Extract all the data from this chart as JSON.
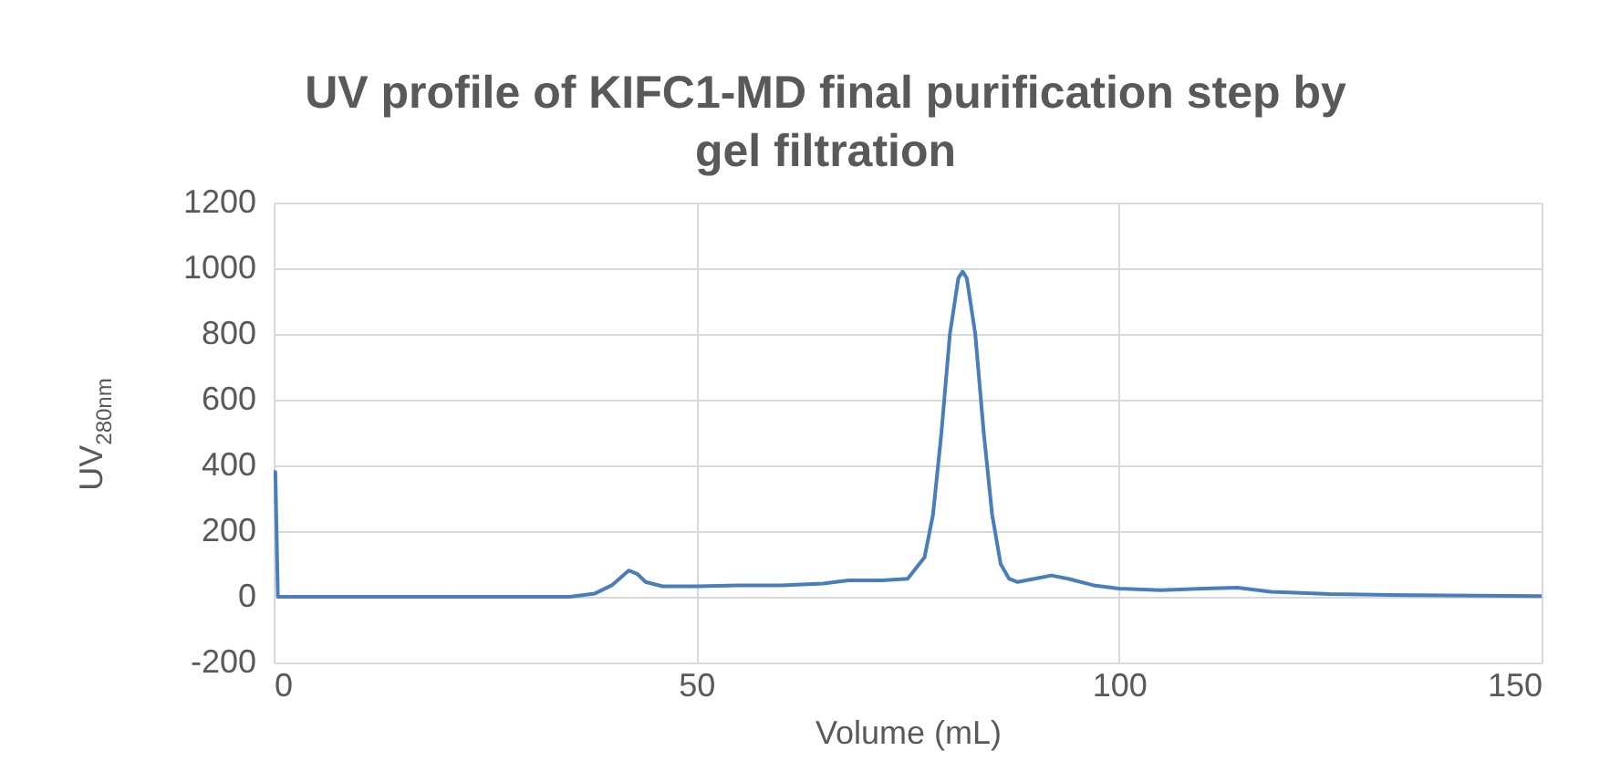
{
  "chart_data": {
    "type": "line",
    "title": "UV profile of KIFC1-MD final purification step by gel filtration",
    "xlabel": "Volume (mL)",
    "ylabel": "UV$_{280nm}$",
    "xlim": [
      0,
      150
    ],
    "xticks": [
      0,
      50,
      100,
      150
    ],
    "ylim": [
      -200,
      1200
    ],
    "yticks": [
      -200,
      0,
      200,
      400,
      600,
      800,
      1000,
      1200
    ],
    "grid": true,
    "line_style": "solid",
    "marker": "none",
    "x": [
      0,
      0.2,
      0.5,
      35,
      38,
      40,
      42,
      43,
      44,
      46,
      50,
      55,
      60,
      65,
      68,
      72,
      75,
      77,
      78,
      79,
      80,
      81,
      81.5,
      82,
      83,
      84,
      85,
      86,
      87,
      88,
      90,
      92,
      94,
      97,
      100,
      105,
      110,
      114,
      118,
      125,
      135,
      150
    ],
    "series": [
      {
        "color": "#4a7ebb",
        "values": [
          380,
          380,
          0,
          0,
          10,
          35,
          80,
          70,
          45,
          32,
          32,
          35,
          35,
          40,
          50,
          50,
          55,
          120,
          250,
          500,
          800,
          970,
          990,
          970,
          800,
          500,
          250,
          100,
          55,
          45,
          55,
          65,
          55,
          35,
          25,
          20,
          25,
          28,
          15,
          8,
          5,
          2
        ]
      }
    ]
  }
}
